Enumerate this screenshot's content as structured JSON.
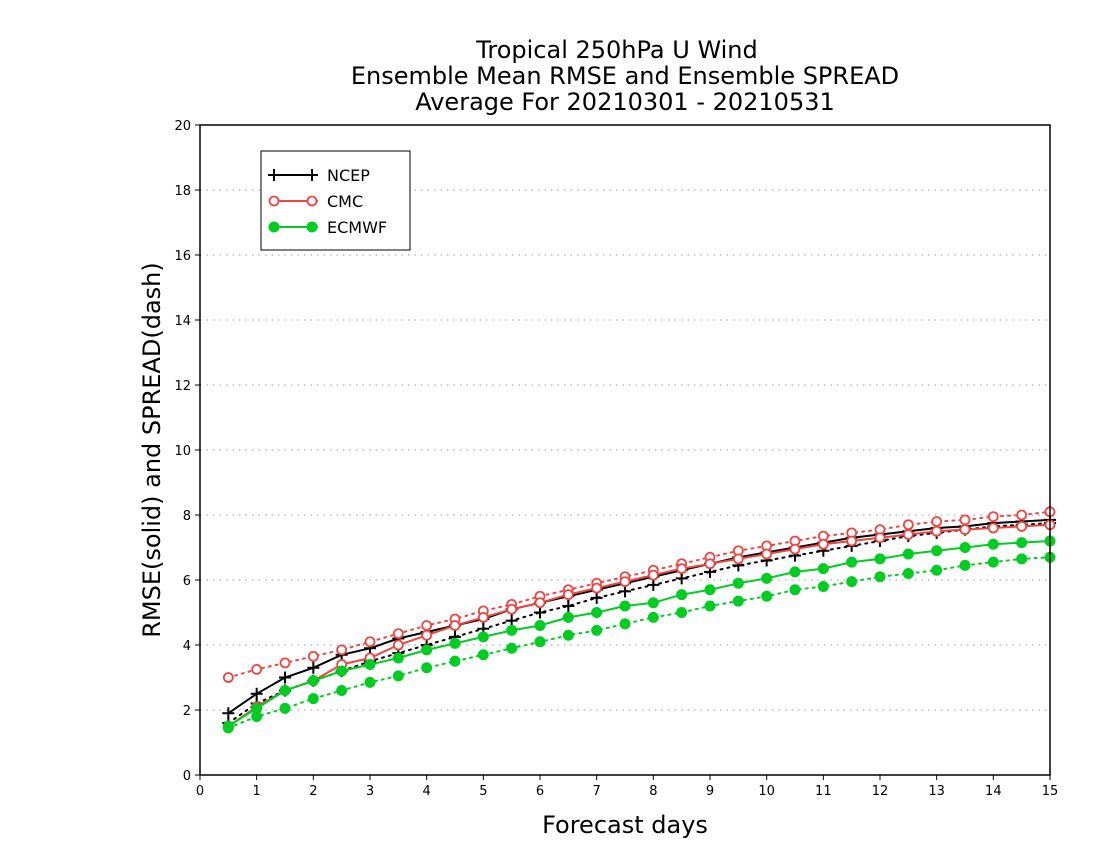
{
  "chart_data": {
    "type": "line",
    "title": [
      "Tropical 250hPa U Wind",
      "Ensemble Mean RMSE and Ensemble SPREAD",
      "Average For 20210301 - 20210531"
    ],
    "xlabel": "Forecast days",
    "ylabel": "RMSE(solid) and SPREAD(dash)",
    "xlim": [
      0,
      15
    ],
    "ylim": [
      0,
      20
    ],
    "x_ticks": [
      "0",
      "1",
      "2",
      "3",
      "4",
      "5",
      "6",
      "7",
      "8",
      "9",
      "10",
      "11",
      "12",
      "13",
      "14",
      "15"
    ],
    "y_ticks": [
      "0",
      "2",
      "4",
      "6",
      "8",
      "10",
      "12",
      "14",
      "16",
      "18",
      "20"
    ],
    "grid": "horizontal dotted",
    "legend_position": "top-left",
    "x": [
      0.5,
      1,
      1.5,
      2,
      2.5,
      3,
      3.5,
      4,
      4.5,
      5,
      5.5,
      6,
      6.5,
      7,
      7.5,
      8,
      8.5,
      9,
      9.5,
      10,
      10.5,
      11,
      11.5,
      12,
      12.5,
      13,
      13.5,
      14,
      14.5,
      15
    ],
    "series": [
      {
        "name": "NCEP",
        "color": "#000000",
        "marker": "plus",
        "rmse": [
          1.9,
          2.5,
          3.0,
          3.3,
          3.7,
          3.9,
          4.2,
          4.4,
          4.6,
          4.8,
          5.1,
          5.3,
          5.5,
          5.7,
          5.9,
          6.1,
          6.3,
          6.5,
          6.7,
          6.85,
          7.0,
          7.15,
          7.3,
          7.4,
          7.5,
          7.6,
          7.65,
          7.75,
          7.8,
          7.85
        ],
        "spread": [
          1.6,
          2.2,
          2.6,
          2.9,
          3.2,
          3.5,
          3.75,
          4.0,
          4.25,
          4.5,
          4.75,
          5.0,
          5.2,
          5.45,
          5.65,
          5.85,
          6.05,
          6.25,
          6.45,
          6.6,
          6.75,
          6.9,
          7.05,
          7.2,
          7.35,
          7.45,
          7.55,
          7.65,
          7.7,
          7.75
        ]
      },
      {
        "name": "CMC",
        "color": "#ee4444",
        "marker": "circle-open",
        "rmse": [
          1.5,
          2.1,
          2.6,
          2.9,
          3.4,
          3.6,
          4.0,
          4.3,
          4.6,
          4.85,
          5.1,
          5.3,
          5.55,
          5.75,
          5.95,
          6.15,
          6.35,
          6.5,
          6.65,
          6.8,
          6.95,
          7.1,
          7.2,
          7.3,
          7.4,
          7.5,
          7.55,
          7.6,
          7.65,
          7.7
        ],
        "spread": [
          3.0,
          3.25,
          3.45,
          3.65,
          3.85,
          4.1,
          4.35,
          4.6,
          4.8,
          5.05,
          5.25,
          5.5,
          5.7,
          5.9,
          6.1,
          6.3,
          6.5,
          6.7,
          6.9,
          7.05,
          7.2,
          7.35,
          7.45,
          7.55,
          7.7,
          7.8,
          7.85,
          7.95,
          8.0,
          8.1
        ]
      },
      {
        "name": "ECMWF",
        "color": "#00cc22",
        "marker": "circle-filled",
        "rmse": [
          1.5,
          2.05,
          2.6,
          2.9,
          3.2,
          3.4,
          3.6,
          3.85,
          4.05,
          4.25,
          4.45,
          4.6,
          4.85,
          5.0,
          5.2,
          5.3,
          5.55,
          5.7,
          5.9,
          6.05,
          6.25,
          6.35,
          6.55,
          6.65,
          6.8,
          6.9,
          7.0,
          7.1,
          7.15,
          7.2
        ],
        "spread": [
          1.45,
          1.8,
          2.05,
          2.35,
          2.6,
          2.85,
          3.05,
          3.3,
          3.5,
          3.7,
          3.9,
          4.1,
          4.3,
          4.45,
          4.65,
          4.85,
          5.0,
          5.2,
          5.35,
          5.5,
          5.7,
          5.8,
          5.95,
          6.1,
          6.2,
          6.3,
          6.45,
          6.55,
          6.65,
          6.7
        ]
      }
    ]
  }
}
